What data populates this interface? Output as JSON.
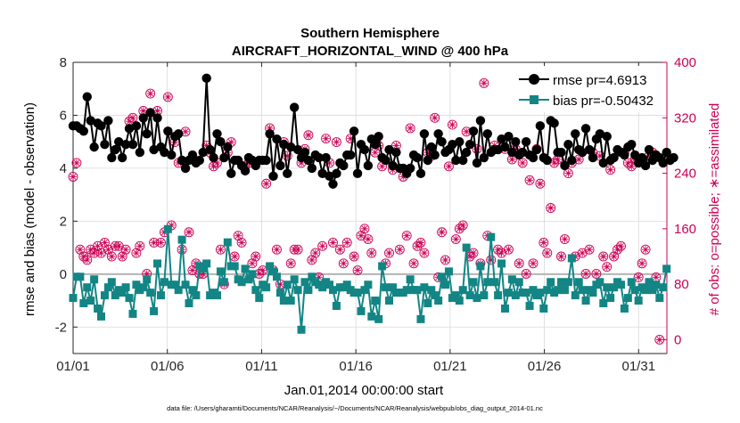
{
  "chart_data": {
    "type": "line",
    "title": "Southern Hemisphere",
    "subtitle": "AIRCRAFT_HORIZONTAL_WIND @ 400 hPa",
    "xlabel": "Jan.01,2014 00:00:00 start",
    "ylabel": "rmse and bias (model - observation)",
    "y2label": "# of obs: o=possible; ∗=assimilated",
    "footnote": "data file: /Users/gharamti/Documents/NCAR/Reanalysis/~/Documents/NCAR/Reanalysis/webpub/obs_diag_output_2014-01.nc",
    "xlim": [
      1,
      32.5
    ],
    "ylim": [
      -3,
      8
    ],
    "y2lim": [
      -20,
      400
    ],
    "xticks": [
      1,
      6,
      11,
      16,
      21,
      26,
      31
    ],
    "xticklabels": [
      "01/01",
      "01/06",
      "01/11",
      "01/16",
      "01/21",
      "01/26",
      "01/31"
    ],
    "yticks": [
      -2,
      0,
      2,
      4,
      6,
      8
    ],
    "yticklabels": [
      "-2",
      "0",
      "2",
      "4",
      "6",
      "8"
    ],
    "y2ticks": [
      0,
      80,
      160,
      240,
      320,
      400
    ],
    "y2ticklabels": [
      "0",
      "80",
      "160",
      "240",
      "320",
      "400"
    ],
    "grid": true,
    "legend_position": "top-right",
    "colors": {
      "rmse": "#000000",
      "bias": "#138585",
      "obs": "#cc0055",
      "zero": "#b3b3b3"
    },
    "series": [
      {
        "name": "rmse pr=4.6913",
        "axis": "left",
        "marker": "circle",
        "values": [
          5.6,
          5.6,
          5.5,
          5.4,
          6.7,
          5.8,
          4.8,
          5.7,
          5.6,
          4.9,
          5.8,
          4.4,
          4.7,
          5.0,
          4.4,
          4.9,
          5.5,
          4.9,
          5.6,
          4.6,
          5.9,
          5.3,
          6.1,
          4.7,
          5.9,
          4.8,
          4.6,
          5.4,
          4.5,
          5.2,
          5.3,
          4.3,
          4.0,
          4.3,
          4.5,
          4.2,
          4.3,
          4.6,
          7.4,
          4.7,
          4.4,
          5.3,
          5.0,
          4.4,
          4.8,
          3.8,
          4.3,
          4.3,
          4.1,
          3.9,
          4.4,
          4.3,
          4.1,
          4.3,
          4.3,
          4.3,
          5.3,
          3.7,
          5.1,
          4.1,
          4.9,
          3.8,
          4.8,
          6.3,
          4.7,
          4.4,
          4.6,
          4.3,
          4.0,
          4.5,
          4.4,
          3.8,
          4.4,
          3.7,
          3.4,
          3.8,
          4.2,
          4.1,
          4.5,
          4.5,
          5.4,
          3.8,
          4.9,
          4.7,
          4.1,
          5.1,
          4.9,
          5.2,
          4.4,
          4.3,
          4.7,
          4.1,
          4.6,
          4.0,
          4.0,
          3.8,
          4.0,
          4.5,
          4.4,
          3.8,
          5.3,
          4.3,
          4.8,
          4.5,
          5.3,
          5.0,
          4.6,
          4.7,
          4.9,
          4.3,
          5.0,
          4.3,
          4.6,
          4.9,
          5.4,
          4.2,
          5.8,
          4.4,
          5.3,
          4.6,
          4.7,
          4.7,
          5.1,
          4.8,
          5.2,
          4.6,
          5.0,
          4.5,
          4.6,
          5.0,
          4.5,
          4.4,
          4.7,
          5.6,
          4.4,
          4.3,
          5.8,
          5.7,
          4.6,
          4.6,
          4.1,
          4.9,
          4.3,
          5.3,
          4.7,
          4.6,
          5.5,
          4.7,
          4.4,
          5.1,
          5.3,
          4.2,
          5.2,
          4.3,
          4.4,
          4.7,
          4.6,
          4.5,
          4.8,
          4.9,
          4.5,
          4.2,
          4.4,
          4.1,
          4.7,
          4.3,
          4.5,
          4.4,
          4.2,
          4.6,
          4.3,
          4.4
        ],
        "x_start": 1,
        "x_step": 0.1863
      },
      {
        "name": "bias pr=-0.50432",
        "axis": "left",
        "marker": "square",
        "values": [
          -0.9,
          -0.1,
          -0.1,
          -1.1,
          -0.5,
          -1.0,
          -0.2,
          -1.3,
          -1.6,
          -0.8,
          -0.5,
          -0.3,
          -0.8,
          -0.6,
          -0.7,
          -0.5,
          -0.9,
          -1.5,
          -0.4,
          -0.6,
          -0.5,
          -0.2,
          -0.7,
          -1.4,
          0.4,
          -0.8,
          -0.3,
          1.7,
          -0.4,
          -0.4,
          -0.6,
          1.3,
          -0.4,
          -1.1,
          -0.6,
          -0.8,
          0.3,
          0.2,
          0.4,
          -0.8,
          -0.7,
          -0.8,
          0.1,
          -0.3,
          1.2,
          0.3,
          0.3,
          -0.2,
          -0.3,
          0.2,
          -0.2,
          0.0,
          -0.6,
          -0.9,
          -0.4,
          -0.5,
          0.3,
          0.1,
          -0.1,
          -0.7,
          -1.0,
          -0.4,
          -1.0,
          -0.2,
          -0.6,
          -2.1,
          -0.3,
          -0.6,
          -0.1,
          -0.3,
          -0.4,
          -0.5,
          -0.3,
          -0.4,
          -0.6,
          -1.2,
          -0.5,
          -0.5,
          -0.4,
          -0.6,
          -0.7,
          -0.7,
          -1.4,
          -0.6,
          -0.4,
          -1.6,
          -1.0,
          -1.7,
          0.3,
          -0.5,
          -1.0,
          -0.5,
          -0.7,
          -0.7,
          -0.7,
          -0.6,
          -0.2,
          -0.6,
          -0.6,
          -1.7,
          -0.5,
          -1.1,
          -0.6,
          -0.8,
          -1.0,
          -0.1,
          -0.4,
          0.1,
          -0.9,
          -0.8,
          -1.0,
          -0.6,
          1.0,
          -0.8,
          -0.3,
          -0.9,
          0.3,
          -0.8,
          -0.3,
          1.4,
          -0.3,
          -0.8,
          0.4,
          -1.3,
          -0.7,
          -0.2,
          -0.8,
          -0.3,
          -0.7,
          -0.7,
          -1.2,
          -0.6,
          -0.8,
          -0.7,
          -1.3,
          -0.6,
          -0.3,
          -0.7,
          -0.6,
          -0.3,
          -0.6,
          -0.3,
          0.6,
          -0.8,
          -0.3,
          -0.6,
          -1.0,
          -0.6,
          -0.7,
          -0.4,
          -0.3,
          -1.1,
          -0.5,
          -0.9,
          -0.5,
          -0.3,
          -0.4,
          -1.3,
          -0.9,
          -0.3,
          -0.6,
          -1.0,
          -0.5,
          -0.6,
          -0.3,
          -0.6,
          -0.4,
          -0.9,
          -0.5,
          0.2
        ],
        "x_start": 1,
        "x_step": 0.1863
      },
      {
        "name": "possible",
        "axis": "right",
        "marker": "circle-open",
        "values": [
          235,
          255,
          130,
          120,
          115,
          130,
          125,
          135,
          125,
          140,
          130,
          120,
          135,
          135,
          120,
          130,
          315,
          320,
          125,
          135,
          330,
          95,
          355,
          140,
          330,
          140,
          155,
          350,
          165,
          285,
          255,
          130,
          300,
          155,
          100,
          110,
          95,
          95,
          280,
          270,
          250,
          255,
          130,
          80,
          270,
          285,
          120,
          150,
          140,
          250,
          255,
          110,
          120,
          95,
          100,
          225,
          305,
          100,
          130,
          80,
          285,
          265,
          110,
          130,
          130,
          255,
          275,
          295,
          115,
          125,
          90,
          135,
          290,
          255,
          140,
          285,
          130,
          110,
          140,
          290,
          120,
          100,
          150,
          160,
          145,
          125,
          270,
          280,
          250,
          110,
          125,
          245,
          280,
          130,
          235,
          150,
          305,
          110,
          135,
          140,
          125,
          270,
          265,
          320,
          90,
          155,
          115,
          250,
          310,
          145,
          160,
          165,
          300,
          120,
          125,
          275,
          110,
          370,
          150,
          115,
          280,
          130,
          125,
          275,
          130,
          260,
          275,
          110,
          255,
          95,
          230,
          110,
          275,
          225,
          140,
          125,
          190,
          255,
          260,
          120,
          145,
          240,
          255,
          120,
          260,
          125,
          95,
          130,
          270,
          95,
          265,
          120,
          105,
          245,
          120,
          130,
          135,
          270,
          255,
          250,
          260,
          90,
          110,
          130,
          265,
          270,
          90,
          0
        ],
        "x_start": 1,
        "x_step": 0.1863
      }
    ]
  }
}
